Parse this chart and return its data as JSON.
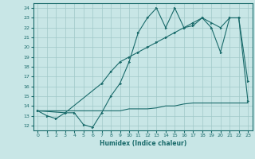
{
  "xlabel": "Humidex (Indice chaleur)",
  "xlim": [
    -0.5,
    23.5
  ],
  "ylim": [
    11.5,
    24.5
  ],
  "xticks": [
    0,
    1,
    2,
    3,
    4,
    5,
    6,
    7,
    8,
    9,
    10,
    11,
    12,
    13,
    14,
    15,
    16,
    17,
    18,
    19,
    20,
    21,
    22,
    23
  ],
  "yticks": [
    12,
    13,
    14,
    15,
    16,
    17,
    18,
    19,
    20,
    21,
    22,
    23,
    24
  ],
  "bg_color": "#c8e6e6",
  "line_color": "#1a6b6b",
  "grid_color": "#a0c8c8",
  "line1_x": [
    0,
    1,
    2,
    3,
    4,
    5,
    6,
    7,
    8,
    9,
    10,
    11,
    12,
    13,
    14,
    15,
    16,
    17,
    18,
    19,
    20,
    21,
    22,
    23
  ],
  "line1_y": [
    13.5,
    13.0,
    12.7,
    13.3,
    13.3,
    12.1,
    11.8,
    13.3,
    15.0,
    16.3,
    18.5,
    21.5,
    23.0,
    24.0,
    22.0,
    24.0,
    22.0,
    22.2,
    23.0,
    22.0,
    19.5,
    23.0,
    23.0,
    14.5
  ],
  "line2_x": [
    0,
    3,
    7,
    8,
    9,
    10,
    11,
    12,
    13,
    14,
    15,
    16,
    17,
    18,
    19,
    20,
    21,
    22,
    23
  ],
  "line2_y": [
    13.5,
    13.3,
    16.3,
    17.5,
    18.5,
    19.0,
    19.5,
    20.0,
    20.5,
    21.0,
    21.5,
    22.0,
    22.5,
    23.0,
    22.5,
    22.0,
    23.0,
    23.0,
    16.5
  ],
  "line3_x": [
    0,
    1,
    2,
    3,
    4,
    5,
    6,
    7,
    8,
    9,
    10,
    11,
    12,
    13,
    14,
    15,
    16,
    17,
    18,
    19,
    20,
    21,
    22,
    23
  ],
  "line3_y": [
    13.5,
    13.5,
    13.5,
    13.5,
    13.5,
    13.5,
    13.5,
    13.5,
    13.5,
    13.5,
    13.7,
    13.7,
    13.7,
    13.8,
    14.0,
    14.0,
    14.2,
    14.3,
    14.3,
    14.3,
    14.3,
    14.3,
    14.3,
    14.3
  ],
  "marker_color": "#1a6b6b",
  "lw": 0.8,
  "ms": 1.8
}
